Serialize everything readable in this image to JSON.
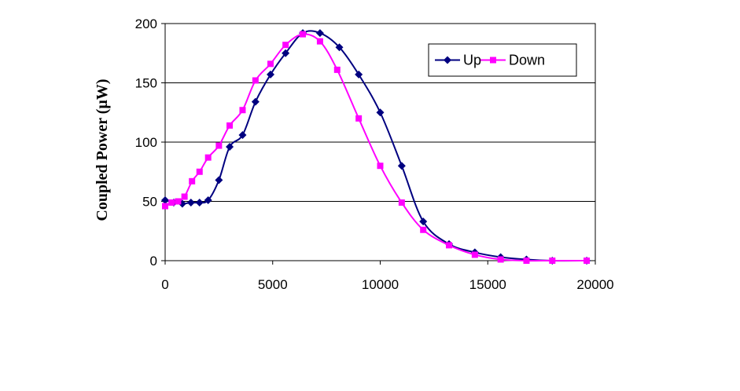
{
  "chart_data": {
    "type": "line",
    "title": "",
    "xlabel": "",
    "ylabel": "Coupled Power (µW)",
    "xlim": [
      0,
      20000
    ],
    "ylim": [
      0,
      200
    ],
    "xticks": [
      0,
      5000,
      10000,
      15000,
      20000
    ],
    "yticks": [
      0,
      50,
      100,
      150,
      200
    ],
    "grid": "horizontal",
    "legend": {
      "placement": "top-right",
      "entries": [
        "Up",
        "Down"
      ]
    },
    "series": [
      {
        "name": "Up",
        "color": "#000080",
        "marker": "diamond",
        "x": [
          0,
          400,
          800,
          1200,
          1600,
          2000,
          2500,
          3000,
          3600,
          4200,
          4900,
          5600,
          6400,
          7200,
          8100,
          9000,
          10000,
          11000,
          12000,
          13200,
          14400,
          15600,
          16800,
          18000,
          19600
        ],
        "y": [
          51,
          49,
          48,
          49,
          49,
          51,
          68,
          96,
          106,
          134,
          157,
          175,
          192,
          192,
          180,
          157,
          125,
          80,
          33,
          14,
          7,
          3,
          1,
          0,
          0
        ]
      },
      {
        "name": "Down",
        "color": "#FF00FF",
        "marker": "square",
        "x": [
          0,
          300,
          600,
          900,
          1250,
          1600,
          2000,
          2500,
          3000,
          3600,
          4200,
          4900,
          5600,
          6400,
          7200,
          8000,
          9000,
          10000,
          11000,
          12000,
          13200,
          14400,
          15600,
          16800,
          18000,
          19600
        ],
        "y": [
          46,
          49,
          50,
          54,
          67,
          75,
          87,
          97,
          114,
          127,
          152,
          166,
          182,
          191,
          185,
          161,
          120,
          80,
          49,
          26,
          13,
          5,
          1,
          0,
          0,
          0
        ]
      }
    ]
  }
}
